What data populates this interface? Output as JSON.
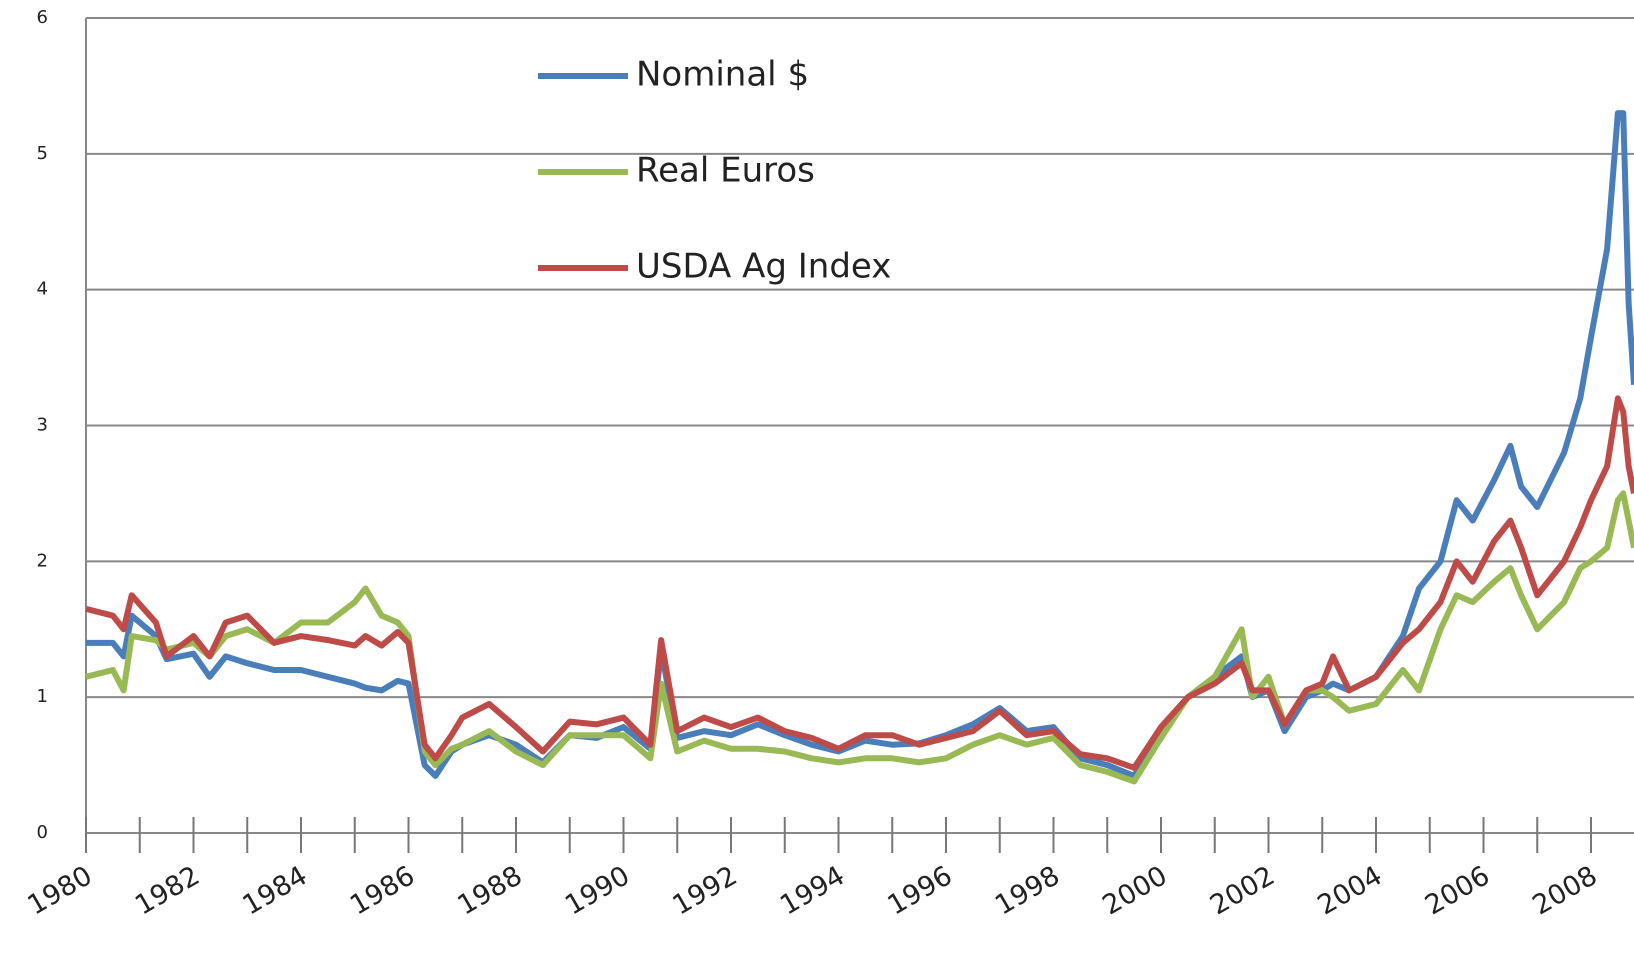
{
  "chart_data": {
    "type": "line",
    "x": [
      1980.0,
      1980.5,
      1980.7,
      1980.85,
      1981.3,
      1981.5,
      1982.0,
      1982.3,
      1982.6,
      1983.0,
      1983.5,
      1984.0,
      1984.5,
      1985.0,
      1985.2,
      1985.5,
      1985.8,
      1986.0,
      1986.3,
      1986.5,
      1986.8,
      1987.0,
      1987.5,
      1988.0,
      1988.5,
      1989.0,
      1989.5,
      1990.0,
      1990.5,
      1990.7,
      1991.0,
      1991.5,
      1992.0,
      1992.5,
      1993.0,
      1993.5,
      1994.0,
      1994.5,
      1995.0,
      1995.5,
      1996.0,
      1996.5,
      1997.0,
      1997.5,
      1998.0,
      1998.5,
      1999.0,
      1999.5,
      2000.0,
      2000.5,
      2001.0,
      2001.5,
      2001.7,
      2002.0,
      2002.3,
      2002.7,
      2003.0,
      2003.2,
      2003.5,
      2004.0,
      2004.5,
      2004.8,
      2005.2,
      2005.5,
      2005.8,
      2006.2,
      2006.5,
      2006.7,
      2007.0,
      2007.5,
      2007.8,
      2008.0,
      2008.3,
      2008.5,
      2008.6,
      2008.7,
      2008.8
    ],
    "series": [
      {
        "name": "Nominal $",
        "color": "#4a7ebb",
        "values": [
          1.4,
          1.4,
          1.3,
          1.6,
          1.45,
          1.28,
          1.32,
          1.15,
          1.3,
          1.25,
          1.2,
          1.2,
          1.15,
          1.1,
          1.07,
          1.05,
          1.12,
          1.1,
          0.5,
          0.42,
          0.6,
          0.65,
          0.72,
          0.65,
          0.52,
          0.72,
          0.7,
          0.78,
          0.62,
          1.35,
          0.7,
          0.75,
          0.72,
          0.8,
          0.72,
          0.65,
          0.6,
          0.68,
          0.65,
          0.66,
          0.72,
          0.8,
          0.92,
          0.75,
          0.78,
          0.55,
          0.5,
          0.42,
          0.75,
          1.0,
          1.15,
          1.3,
          1.0,
          1.05,
          0.75,
          1.0,
          1.05,
          1.1,
          1.05,
          1.15,
          1.45,
          1.8,
          2.0,
          2.45,
          2.3,
          2.6,
          2.85,
          2.55,
          2.4,
          2.8,
          3.2,
          3.65,
          4.3,
          5.3,
          5.3,
          3.9,
          3.3
        ]
      },
      {
        "name": "Real Euros",
        "color": "#98b954",
        "values": [
          1.15,
          1.2,
          1.05,
          1.45,
          1.42,
          1.35,
          1.4,
          1.3,
          1.45,
          1.5,
          1.4,
          1.55,
          1.55,
          1.7,
          1.8,
          1.6,
          1.55,
          1.45,
          0.6,
          0.5,
          0.62,
          0.65,
          0.75,
          0.6,
          0.5,
          0.72,
          0.72,
          0.72,
          0.55,
          1.1,
          0.6,
          0.68,
          0.62,
          0.62,
          0.6,
          0.55,
          0.52,
          0.55,
          0.55,
          0.52,
          0.55,
          0.65,
          0.72,
          0.65,
          0.7,
          0.5,
          0.45,
          0.38,
          0.7,
          1.0,
          1.15,
          1.5,
          1.0,
          1.15,
          0.8,
          1.05,
          1.05,
          1.0,
          0.9,
          0.95,
          1.2,
          1.05,
          1.5,
          1.75,
          1.7,
          1.85,
          1.95,
          1.75,
          1.5,
          1.7,
          1.95,
          2.0,
          2.1,
          2.45,
          2.5,
          2.3,
          2.1
        ]
      },
      {
        "name": "USDA Ag Index",
        "color": "#be4b48",
        "values": [
          1.65,
          1.6,
          1.5,
          1.75,
          1.55,
          1.3,
          1.45,
          1.3,
          1.55,
          1.6,
          1.4,
          1.45,
          1.42,
          1.38,
          1.45,
          1.38,
          1.48,
          1.4,
          0.65,
          0.55,
          0.72,
          0.85,
          0.95,
          0.78,
          0.6,
          0.82,
          0.8,
          0.85,
          0.65,
          1.42,
          0.75,
          0.85,
          0.78,
          0.85,
          0.75,
          0.7,
          0.62,
          0.72,
          0.72,
          0.65,
          0.7,
          0.75,
          0.9,
          0.72,
          0.75,
          0.58,
          0.55,
          0.48,
          0.78,
          1.0,
          1.1,
          1.25,
          1.05,
          1.05,
          0.8,
          1.05,
          1.1,
          1.3,
          1.05,
          1.15,
          1.4,
          1.5,
          1.7,
          2.0,
          1.85,
          2.15,
          2.3,
          2.1,
          1.75,
          2.0,
          2.25,
          2.45,
          2.7,
          3.2,
          3.1,
          2.7,
          2.5
        ]
      }
    ],
    "xlim": [
      1980,
      2008.8
    ],
    "xticks": [
      1980,
      1982,
      1984,
      1986,
      1988,
      1990,
      1992,
      1994,
      1996,
      1998,
      2000,
      2002,
      2004,
      2006,
      2008
    ],
    "xminorticks": [
      1981,
      1983,
      1985,
      1987,
      1989,
      1991,
      1993,
      1995,
      1997,
      1999,
      2001,
      2003,
      2005,
      2007
    ],
    "ylim": [
      0,
      6
    ],
    "yticks": [
      0,
      1,
      2,
      3,
      4,
      5,
      6
    ],
    "grid": true
  }
}
